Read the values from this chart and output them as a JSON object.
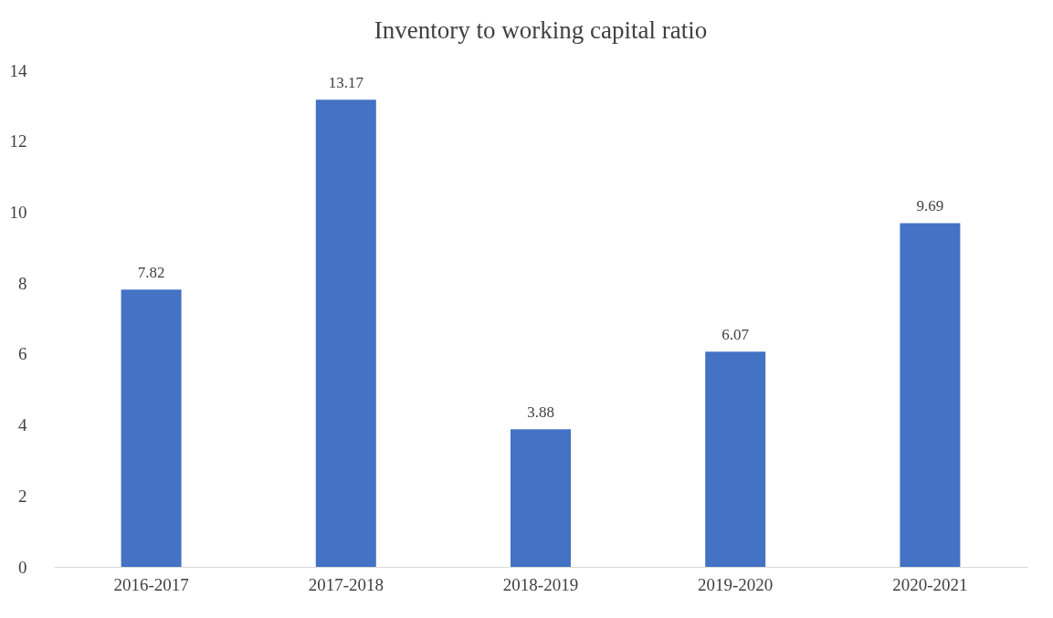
{
  "chart_data": {
    "type": "bar",
    "title": "Inventory to working capital ratio",
    "categories": [
      "2016-2017",
      "2017-2018",
      "2018-2019",
      "2019-2020",
      "2020-2021"
    ],
    "values": [
      7.82,
      13.17,
      3.88,
      6.07,
      9.69
    ],
    "color": "#4472c4",
    "ylim": [
      0,
      14
    ],
    "yticks": [
      0,
      2,
      4,
      6,
      8,
      10,
      12,
      14
    ],
    "grid": false,
    "data_labels": true
  }
}
